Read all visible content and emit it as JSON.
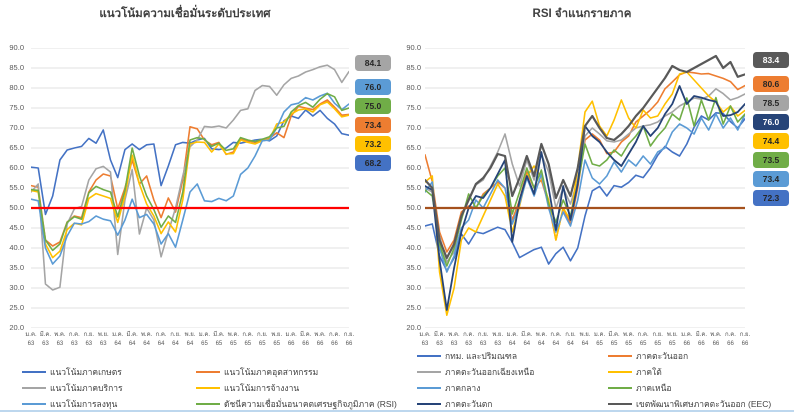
{
  "page": {
    "background": "#ffffff",
    "bottom_divider_color": "#BDD7EE"
  },
  "chart_data": [
    {
      "type": "line",
      "title": "แนวโน้มความเชื่อมั่นระดับประเทศ",
      "y_axis": {
        "min": 20,
        "max": 90,
        "step": 5,
        "tick_labels": [
          "90.0",
          "85.0",
          "80.0",
          "75.0",
          "70.0",
          "65.0",
          "60.0",
          "55.0",
          "50.0",
          "45.0",
          "40.0",
          "35.0",
          "30.0",
          "25.0",
          "20.0"
        ]
      },
      "x_tick_labels": [
        {
          "month": "ม.ค.",
          "year": "63"
        },
        {
          "month": "มี.ค.",
          "year": "63"
        },
        {
          "month": "พ.ค.",
          "year": "63"
        },
        {
          "month": "ก.ค.",
          "year": "63"
        },
        {
          "month": "ก.ย.",
          "year": "63"
        },
        {
          "month": "พ.ย.",
          "year": "63"
        },
        {
          "month": "ม.ค.",
          "year": "64"
        },
        {
          "month": "มี.ค.",
          "year": "64"
        },
        {
          "month": "พ.ค.",
          "year": "64"
        },
        {
          "month": "ก.ค.",
          "year": "64"
        },
        {
          "month": "ก.ย.",
          "year": "64"
        },
        {
          "month": "พ.ย.",
          "year": "64"
        },
        {
          "month": "ม.ค.",
          "year": "65"
        },
        {
          "month": "มี.ค.",
          "year": "65"
        },
        {
          "month": "พ.ค.",
          "year": "65"
        },
        {
          "month": "ก.ค.",
          "year": "65"
        },
        {
          "month": "ก.ย.",
          "year": "65"
        },
        {
          "month": "พ.ย.",
          "year": "65"
        },
        {
          "month": "ม.ค.",
          "year": "66"
        },
        {
          "month": "มี.ค.",
          "year": "66"
        },
        {
          "month": "พ.ค.",
          "year": "66"
        },
        {
          "month": "ก.ค.",
          "year": "66"
        },
        {
          "month": "ก.ย.",
          "year": "66"
        }
      ],
      "reference_line": {
        "value": 50.0,
        "color": "#FF0000"
      },
      "grid_color": "#D9D9D9",
      "series": [
        {
          "name": "แนวโน้มภาคเกษตร",
          "color": "#4472C4",
          "stroke_width": 1.6,
          "values": [
            60.2,
            60.0,
            48.4,
            53.0,
            62.0,
            64.5,
            65.0,
            65.4,
            67.4,
            66.2,
            69.5,
            62.0,
            57.6,
            64.6,
            66.0,
            64.6,
            65.8,
            66.0,
            55.6,
            60.5,
            65.8,
            66.4,
            66.2,
            67.0,
            67.4,
            64.8,
            64.6,
            65.0,
            66.4,
            66.2,
            66.6,
            67.0,
            67.2,
            66.8,
            68.0,
            71.8,
            73.0,
            72.4,
            74.5,
            73.0,
            74.4,
            72.4,
            71.0,
            68.6,
            68.2
          ]
        },
        {
          "name": "แนวโน้มภาคอุตสาหกรรม",
          "color": "#ED7D31",
          "stroke_width": 1.6,
          "values": [
            55.6,
            55.2,
            42.0,
            40.5,
            41.5,
            46.5,
            48.0,
            47.6,
            54.0,
            57.0,
            58.5,
            58.0,
            49.8,
            55.0,
            62.0,
            56.0,
            58.0,
            52.0,
            47.6,
            52.5,
            49.0,
            57.0,
            70.3,
            69.8,
            67.0,
            65.8,
            66.4,
            63.4,
            64.0,
            67.2,
            66.8,
            66.4,
            66.8,
            67.4,
            68.8,
            67.6,
            73.0,
            75.4,
            75.0,
            74.6,
            76.0,
            77.0,
            75.2,
            73.2,
            73.4
          ]
        },
        {
          "name": "แนวโน้มภาคบริการ",
          "color": "#A5A5A5",
          "stroke_width": 1.6,
          "values": [
            54.0,
            56.0,
            31.0,
            29.5,
            30.2,
            46.0,
            49.8,
            50.4,
            57.0,
            59.8,
            60.4,
            59.0,
            38.4,
            52.0,
            59.6,
            43.5,
            50.0,
            47.0,
            37.8,
            44.0,
            50.0,
            58.0,
            65.3,
            67.0,
            70.4,
            70.2,
            70.5,
            70.0,
            72.0,
            74.4,
            74.8,
            79.4,
            80.6,
            80.4,
            78.2,
            80.8,
            82.4,
            83.0,
            84.0,
            84.6,
            85.3,
            85.7,
            84.6,
            81.4,
            84.1
          ]
        },
        {
          "name": "แนวโน้มการจ้างงาน",
          "color": "#FFC000",
          "stroke_width": 1.6,
          "values": [
            54.4,
            54.0,
            41.0,
            37.6,
            39.2,
            44.6,
            46.2,
            45.8,
            52.4,
            53.6,
            53.0,
            52.4,
            46.4,
            53.0,
            63.2,
            56.0,
            51.0,
            48.0,
            43.6,
            46.5,
            44.0,
            52.0,
            66.0,
            66.5,
            66.4,
            64.0,
            66.0,
            63.5,
            63.6,
            67.0,
            66.4,
            66.0,
            66.8,
            67.2,
            71.0,
            71.5,
            73.5,
            74.5,
            74.8,
            74.0,
            75.8,
            76.5,
            74.8,
            72.8,
            73.2
          ]
        },
        {
          "name": "แนวโน้มการลงทุน",
          "color": "#5B9BD5",
          "stroke_width": 1.6,
          "values": [
            52.2,
            51.8,
            40.0,
            36.0,
            38.0,
            43.0,
            46.2,
            46.0,
            46.6,
            48.0,
            47.2,
            46.8,
            43.2,
            47.0,
            52.2,
            47.6,
            48.4,
            46.0,
            41.0,
            43.6,
            40.2,
            47.0,
            54.0,
            56.0,
            51.8,
            51.6,
            52.4,
            51.8,
            53.0,
            58.4,
            60.0,
            63.0,
            66.8,
            67.0,
            70.0,
            74.0,
            75.8,
            76.2,
            77.6,
            77.0,
            78.0,
            78.7,
            76.2,
            74.6,
            76.0
          ]
        },
        {
          "name": "ดัชนีความเชื่อมั่นอนาคตเศรษฐกิจภูมิภาค (RSI)",
          "color": "#70AD47",
          "stroke_width": 1.6,
          "values": [
            54.6,
            54.4,
            42.0,
            39.4,
            41.0,
            46.4,
            47.8,
            47.2,
            53.8,
            55.4,
            54.6,
            54.0,
            47.8,
            54.4,
            65.0,
            58.0,
            53.0,
            49.6,
            45.2,
            48.0,
            46.4,
            54.0,
            67.0,
            67.6,
            67.2,
            65.4,
            66.2,
            64.4,
            64.8,
            67.6,
            67.0,
            66.6,
            67.2,
            67.8,
            70.0,
            70.4,
            74.0,
            75.6,
            76.4,
            75.2,
            77.2,
            78.6,
            77.8,
            74.4,
            75.0
          ]
        }
      ],
      "end_value_badges": [
        {
          "label": "84.1",
          "bg": "#A5A5A5",
          "fg": "#262626"
        },
        {
          "label": "76.0",
          "bg": "#5B9BD5",
          "fg": "#262626"
        },
        {
          "label": "75.0",
          "bg": "#70AD47",
          "fg": "#262626"
        },
        {
          "label": "73.4",
          "bg": "#ED7D31",
          "fg": "#262626"
        },
        {
          "label": "73.2",
          "bg": "#FFC000",
          "fg": "#262626"
        },
        {
          "label": "68.2",
          "bg": "#4472C4",
          "fg": "#262626"
        }
      ]
    },
    {
      "type": "line",
      "title": "RSI จำแนกรายภาค",
      "y_axis": {
        "min": 20,
        "max": 90,
        "step": 5,
        "tick_labels": [
          "90.0",
          "85.0",
          "80.0",
          "75.0",
          "70.0",
          "65.0",
          "60.0",
          "55.0",
          "50.0",
          "45.0",
          "40.0",
          "35.0",
          "30.0",
          "25.0",
          "20.0"
        ]
      },
      "x_tick_labels": [
        {
          "month": "ม.ค.",
          "year": "63"
        },
        {
          "month": "มี.ค.",
          "year": "63"
        },
        {
          "month": "พ.ค.",
          "year": "63"
        },
        {
          "month": "ก.ค.",
          "year": "63"
        },
        {
          "month": "ก.ย.",
          "year": "63"
        },
        {
          "month": "พ.ย.",
          "year": "63"
        },
        {
          "month": "ม.ค.",
          "year": "64"
        },
        {
          "month": "มี.ค.",
          "year": "64"
        },
        {
          "month": "พ.ค.",
          "year": "64"
        },
        {
          "month": "ก.ค.",
          "year": "64"
        },
        {
          "month": "ก.ย.",
          "year": "64"
        },
        {
          "month": "พ.ย.",
          "year": "64"
        },
        {
          "month": "ม.ค.",
          "year": "65"
        },
        {
          "month": "มี.ค.",
          "year": "65"
        },
        {
          "month": "พ.ค.",
          "year": "65"
        },
        {
          "month": "ก.ค.",
          "year": "65"
        },
        {
          "month": "ก.ย.",
          "year": "65"
        },
        {
          "month": "พ.ย.",
          "year": "65"
        },
        {
          "month": "ม.ค.",
          "year": "66"
        },
        {
          "month": "มี.ค.",
          "year": "66"
        },
        {
          "month": "พ.ค.",
          "year": "66"
        },
        {
          "month": "ก.ค.",
          "year": "66"
        },
        {
          "month": "ก.ย.",
          "year": "66"
        }
      ],
      "reference_line": {
        "value": 50.0,
        "color": "#A5511D"
      },
      "grid_color": "#D9D9D9",
      "series": [
        {
          "name": "กทม. และปริมณฑล",
          "color": "#4472C4",
          "stroke_width": 1.6,
          "values": [
            45.5,
            46.0,
            38.0,
            34.3,
            37.5,
            43.5,
            41.0,
            44.0,
            43.6,
            44.4,
            45.2,
            44.6,
            41.4,
            37.6,
            38.6,
            39.6,
            40.2,
            36.0,
            38.6,
            40.2,
            36.8,
            40.0,
            48.0,
            54.3,
            55.4,
            53.0,
            55.6,
            55.2,
            56.4,
            58.2,
            57.6,
            60.0,
            63.2,
            65.4,
            64.0,
            63.0,
            66.0,
            70.2,
            73.0,
            72.0,
            73.8,
            73.6,
            71.6,
            70.0,
            72.3
          ]
        },
        {
          "name": "ภาคตะวันออก",
          "color": "#ED7D31",
          "stroke_width": 1.6,
          "values": [
            63.3,
            56.6,
            44.0,
            39.0,
            42.0,
            49.0,
            50.5,
            50.0,
            53.5,
            55.0,
            56.5,
            55.0,
            47.0,
            52.0,
            59.0,
            55.0,
            57.0,
            51.0,
            42.0,
            50.0,
            46.0,
            55.0,
            67.0,
            68.5,
            67.0,
            63.6,
            64.0,
            66.5,
            68.0,
            71.5,
            73.0,
            74.5,
            76.5,
            79.8,
            81.5,
            83.3,
            84.0,
            83.8,
            83.5,
            83.6,
            83.0,
            82.4,
            81.6,
            79.6,
            80.6
          ]
        },
        {
          "name": "ภาคตะวันออกเฉียงเหนือ",
          "color": "#A5A5A5",
          "stroke_width": 1.6,
          "values": [
            55.0,
            54.0,
            43.0,
            36.5,
            39.0,
            47.5,
            52.0,
            55.8,
            57.0,
            60.5,
            64.0,
            68.5,
            61.0,
            55.5,
            62.0,
            57.0,
            63.5,
            59.0,
            50.0,
            55.0,
            51.0,
            57.0,
            68.0,
            70.0,
            68.5,
            66.8,
            66.5,
            67.0,
            68.5,
            70.0,
            70.5,
            70.8,
            71.5,
            73.0,
            74.0,
            75.5,
            76.5,
            77.5,
            77.2,
            78.0,
            79.8,
            78.6,
            77.0,
            77.6,
            78.5
          ]
        },
        {
          "name": "ภาคใต้",
          "color": "#FFC000",
          "stroke_width": 1.6,
          "values": [
            56.5,
            58.0,
            34.0,
            23.2,
            30.0,
            42.0,
            45.0,
            44.0,
            48.0,
            52.0,
            56.0,
            53.0,
            44.0,
            50.5,
            58.0,
            60.5,
            57.5,
            52.0,
            42.0,
            50.0,
            47.0,
            60.0,
            74.0,
            76.7,
            70.5,
            68.0,
            72.0,
            77.0,
            72.5,
            70.0,
            74.5,
            72.5,
            73.0,
            76.0,
            78.5,
            83.5,
            84.0,
            82.0,
            80.0,
            78.0,
            76.5,
            74.0,
            75.5,
            73.0,
            74.4
          ]
        },
        {
          "name": "ภาคกลาง",
          "color": "#5B9BD5",
          "stroke_width": 1.6,
          "values": [
            54.0,
            56.5,
            40.0,
            34.0,
            38.0,
            45.0,
            47.0,
            52.0,
            50.0,
            53.5,
            57.0,
            55.0,
            46.0,
            51.0,
            57.5,
            53.0,
            58.5,
            50.0,
            44.0,
            49.0,
            45.5,
            52.0,
            62.0,
            57.5,
            56.0,
            58.0,
            61.5,
            59.0,
            62.0,
            60.5,
            63.0,
            61.0,
            64.0,
            65.0,
            69.0,
            71.0,
            70.0,
            68.5,
            72.5,
            69.5,
            73.5,
            70.0,
            72.5,
            69.5,
            73.4
          ]
        },
        {
          "name": "ภาคเหนือ",
          "color": "#70AD47",
          "stroke_width": 1.6,
          "values": [
            54.5,
            53.0,
            41.0,
            35.5,
            40.0,
            47.0,
            53.5,
            50.0,
            53.0,
            55.0,
            58.0,
            60.0,
            48.5,
            54.0,
            60.0,
            55.0,
            59.5,
            51.0,
            46.5,
            52.0,
            48.0,
            56.0,
            66.0,
            61.0,
            60.5,
            62.0,
            64.5,
            63.0,
            66.0,
            68.0,
            70.5,
            65.5,
            68.0,
            70.0,
            73.5,
            72.0,
            77.5,
            70.5,
            77.0,
            72.0,
            77.6,
            71.0,
            75.5,
            71.5,
            73.5
          ]
        },
        {
          "name": "ภาคตะวันตก",
          "color": "#264478",
          "stroke_width": 1.8,
          "values": [
            55.5,
            54.5,
            37.0,
            24.5,
            35.0,
            44.0,
            50.0,
            53.0,
            52.5,
            55.0,
            58.5,
            62.0,
            41.5,
            52.0,
            58.0,
            53.5,
            64.0,
            55.0,
            44.5,
            55.5,
            47.0,
            56.0,
            70.5,
            68.0,
            66.5,
            64.0,
            62.0,
            60.5,
            63.5,
            66.5,
            70.5,
            68.0,
            70.0,
            73.5,
            76.0,
            80.5,
            76.0,
            78.0,
            77.6,
            77.0,
            76.6,
            73.0,
            73.2,
            74.0,
            76.0
          ]
        },
        {
          "name": "เขตพัฒนาพิเศษภาคตะวันออก (EEC)",
          "color": "#595959",
          "stroke_width": 2.2,
          "values": [
            57.0,
            55.0,
            42.0,
            37.5,
            41.0,
            48.0,
            52.0,
            56.0,
            57.5,
            60.0,
            63.5,
            63.0,
            53.0,
            57.5,
            63.0,
            58.0,
            66.0,
            61.0,
            52.5,
            57.0,
            53.0,
            60.0,
            70.5,
            73.0,
            70.0,
            67.5,
            67.0,
            68.5,
            70.5,
            73.0,
            75.0,
            77.5,
            80.0,
            82.5,
            85.5,
            84.5,
            84.0,
            85.0,
            86.0,
            87.0,
            88.0,
            85.0,
            86.5,
            82.8,
            83.4
          ]
        }
      ],
      "end_value_badges": [
        {
          "label": "83.4",
          "bg": "#595959",
          "fg": "#FFFFFF"
        },
        {
          "label": "80.6",
          "bg": "#ED7D31",
          "fg": "#262626"
        },
        {
          "label": "78.5",
          "bg": "#A5A5A5",
          "fg": "#262626"
        },
        {
          "label": "76.0",
          "bg": "#264478",
          "fg": "#FFFFFF"
        },
        {
          "label": "74.4",
          "bg": "#FFC000",
          "fg": "#262626"
        },
        {
          "label": "73.5",
          "bg": "#70AD47",
          "fg": "#262626"
        },
        {
          "label": "73.4",
          "bg": "#5B9BD5",
          "fg": "#262626"
        },
        {
          "label": "72.3",
          "bg": "#4472C4",
          "fg": "#262626"
        }
      ]
    }
  ]
}
